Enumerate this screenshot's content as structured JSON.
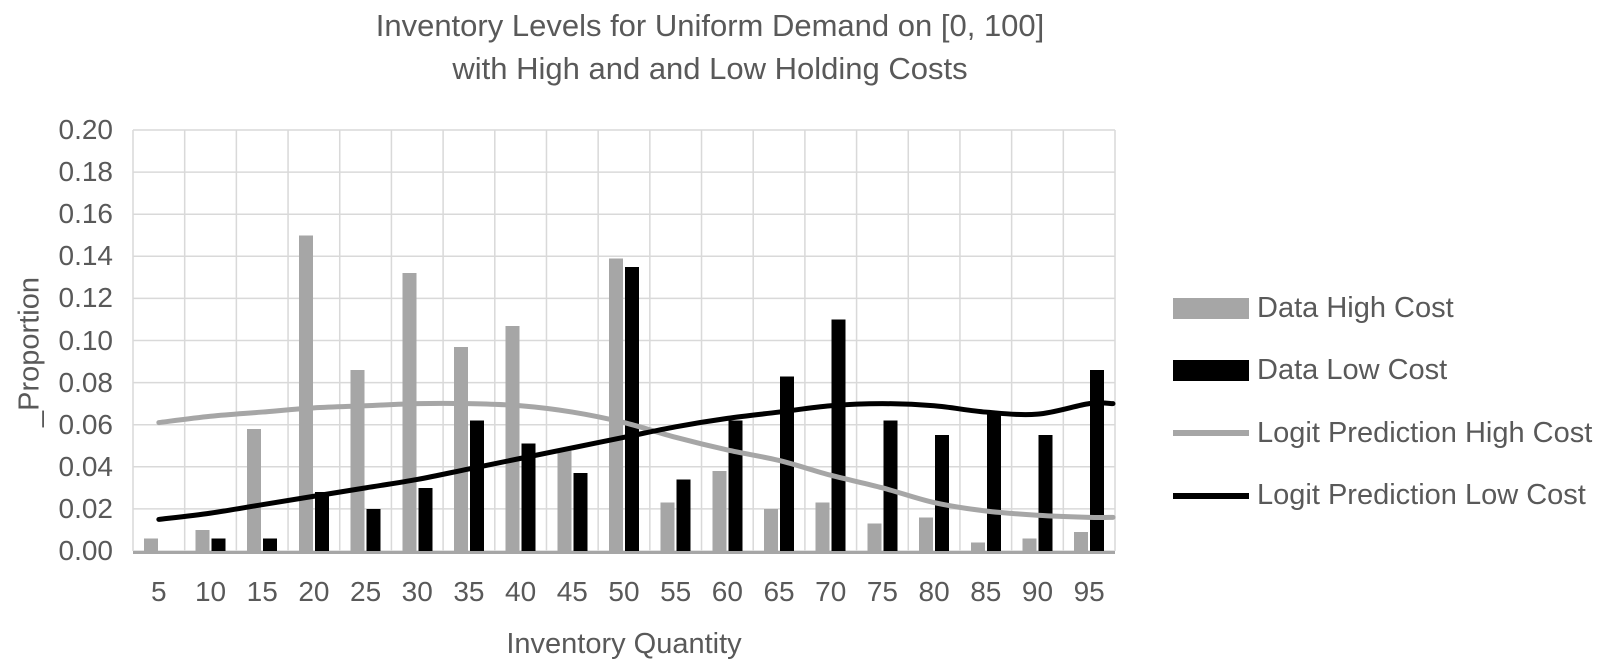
{
  "chart_data": {
    "type": "combo",
    "title_line1": "Inventory Levels for Uniform Demand on [0, 100]",
    "title_line2": "with High and and Low Holding Costs",
    "xlabel": "Inventory Quantity",
    "ylabel": "_Proportion",
    "categories": [
      5,
      10,
      15,
      20,
      25,
      30,
      35,
      40,
      45,
      50,
      55,
      60,
      65,
      70,
      75,
      80,
      85,
      90,
      95
    ],
    "y_axis": {
      "min": 0.0,
      "max": 0.2,
      "step": 0.02,
      "tick_labels": [
        "0.00",
        "0.02",
        "0.04",
        "0.06",
        "0.08",
        "0.10",
        "0.12",
        "0.14",
        "0.16",
        "0.18",
        "0.20"
      ]
    },
    "grid": true,
    "legend_position": "right",
    "series": [
      {
        "name": "Data High Cost",
        "type": "bar",
        "color": "#a6a6a6",
        "values": [
          0.006,
          0.01,
          0.058,
          0.15,
          0.086,
          0.132,
          0.097,
          0.107,
          0.048,
          0.139,
          0.023,
          0.038,
          0.02,
          0.023,
          0.013,
          0.016,
          0.004,
          0.006,
          0.009
        ]
      },
      {
        "name": "Data Low Cost",
        "type": "bar",
        "color": "#000000",
        "values": [
          0.0,
          0.006,
          0.006,
          0.028,
          0.02,
          0.03,
          0.062,
          0.051,
          0.037,
          0.135,
          0.034,
          0.062,
          0.083,
          0.11,
          0.062,
          0.055,
          0.065,
          0.055,
          0.086
        ]
      },
      {
        "name": "Logit Prediction High Cost",
        "type": "line",
        "color": "#a6a6a6",
        "values": [
          0.061,
          0.064,
          0.066,
          0.068,
          0.069,
          0.07,
          0.07,
          0.069,
          0.066,
          0.061,
          0.054,
          0.048,
          0.043,
          0.036,
          0.03,
          0.023,
          0.019,
          0.017,
          0.016
        ]
      },
      {
        "name": "Logit Prediction Low Cost",
        "type": "line",
        "color": "#000000",
        "values": [
          0.015,
          0.018,
          0.022,
          0.026,
          0.03,
          0.034,
          0.039,
          0.044,
          0.049,
          0.054,
          0.059,
          0.063,
          0.066,
          0.069,
          0.07,
          0.069,
          0.066,
          0.065,
          0.07
        ]
      }
    ]
  },
  "colors": {
    "text": "#595959",
    "gridline": "#d9d9d9",
    "axis_line": "#a6a6a6",
    "bar_high": "#a6a6a6",
    "bar_low": "#000000",
    "background": "#ffffff"
  }
}
